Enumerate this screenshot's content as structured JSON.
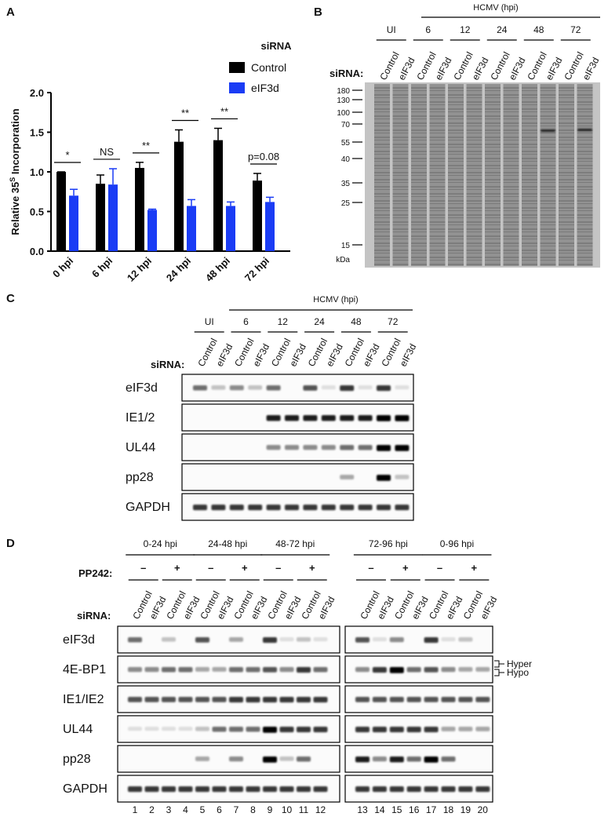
{
  "panel_labels": [
    "A",
    "B",
    "C",
    "D"
  ],
  "chart_data": {
    "type": "bar",
    "legend_title": "siRNA",
    "y_label_parts": [
      "Relative 35",
      "S",
      " Incorporation"
    ],
    "categories": [
      "0 hpi",
      "6 hpi",
      "12 hpi",
      "24 hpi",
      "48 hpi",
      "72 hpi"
    ],
    "series": [
      {
        "name": "Control",
        "color": "#000000",
        "values": [
          1.0,
          0.85,
          1.05,
          1.38,
          1.4,
          0.89
        ],
        "errors": [
          0.0,
          0.11,
          0.07,
          0.15,
          0.15,
          0.09
        ]
      },
      {
        "name": "eIF3d",
        "color": "#1a3cf5",
        "values": [
          0.7,
          0.84,
          0.52,
          0.57,
          0.57,
          0.62
        ],
        "errors": [
          0.08,
          0.2,
          0.01,
          0.08,
          0.05,
          0.06
        ]
      }
    ],
    "significance": [
      "*",
      "NS",
      "**",
      "**",
      "**",
      "p=0.08"
    ],
    "ylim": [
      0,
      2.0
    ],
    "yticks": [
      {
        "value": 0,
        "label": "0.0"
      },
      {
        "value": 0.5,
        "label": "0.5"
      },
      {
        "value": 1.0,
        "label": "1.0"
      },
      {
        "value": 1.5,
        "label": "1.5"
      },
      {
        "value": 2.0,
        "label": "2.0"
      }
    ]
  },
  "gel_b": {
    "header": "HCMV (hpi)",
    "groups": [
      "UI",
      "6",
      "12",
      "24",
      "48",
      "72"
    ],
    "sirna_label": "siRNA:",
    "lanes": [
      "Control",
      "eIF3d",
      "Control",
      "eIF3d",
      "Control",
      "eIF3d",
      "Control",
      "eIF3d",
      "Control",
      "eIF3d",
      "Control",
      "eIF3d"
    ],
    "markers": [
      180,
      130,
      100,
      70,
      55,
      40,
      35,
      25,
      15
    ],
    "unit": "kDa"
  },
  "blot_c": {
    "header": "HCMV (hpi)",
    "groups": [
      "UI",
      "6",
      "12",
      "24",
      "48",
      "72"
    ],
    "sirna_label": "siRNA:",
    "lanes": [
      "Control",
      "eIF3d",
      "Control",
      "eIF3d",
      "Control",
      "eIF3d",
      "Control",
      "eIF3d",
      "Control",
      "eIF3d",
      "Control",
      "eIF3d"
    ],
    "rows": [
      "eIF3d",
      "IE1/2",
      "UL44",
      "pp28",
      "GAPDH"
    ]
  },
  "blot_d": {
    "groups": [
      "0-24 hpi",
      "24-48 hpi",
      "48-72 hpi",
      "72-96 hpi",
      "0-96 hpi"
    ],
    "treatment_label": "PP242:",
    "signs": [
      "–",
      "+",
      "–",
      "+",
      "–",
      "+",
      "–",
      "+",
      "–",
      "+"
    ],
    "sirna_label": "siRNA:",
    "lanes": [
      "Control",
      "eIF3d",
      "Control",
      "eIF3d",
      "Control",
      "eIF3d",
      "Control",
      "eIF3d",
      "Control",
      "eIF3d",
      "Control",
      "eIF3d",
      "Control",
      "eIF3d",
      "Control",
      "eIF3d",
      "Control",
      "eIF3d",
      "Control",
      "eIF3d"
    ],
    "rows": [
      "eIF3d",
      "4E-BP1",
      "IE1/IE2",
      "UL44",
      "pp28",
      "GAPDH"
    ],
    "annotations": [
      "Hyper",
      "Hypo"
    ],
    "lane_numbers": [
      1,
      2,
      3,
      4,
      5,
      6,
      7,
      8,
      9,
      10,
      11,
      12,
      13,
      14,
      15,
      16,
      17,
      18,
      19,
      20
    ]
  }
}
